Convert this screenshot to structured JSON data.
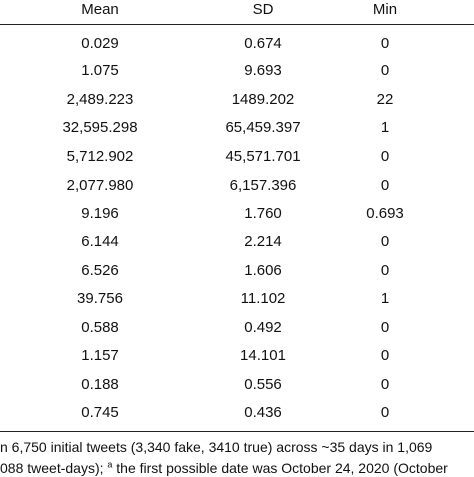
{
  "table": {
    "header": [
      "Mean",
      "SD",
      "Min"
    ],
    "rows": [
      [
        "0.029",
        "0.674",
        "0"
      ],
      [
        "1.075",
        "9.693",
        "0"
      ],
      [
        "2,489.223",
        "1489.202",
        "22"
      ],
      [
        "32,595.298",
        "65,459.397",
        "1"
      ],
      [
        "5,712.902",
        "45,571.701",
        "0"
      ],
      [
        "2,077.980",
        "6,157.396",
        "0"
      ],
      [
        "9.196",
        "1.760",
        "0.693"
      ],
      [
        "6.144",
        "2.214",
        "0"
      ],
      [
        "6.526",
        "1.606",
        "0"
      ],
      [
        "39.756",
        "11.102",
        "1"
      ],
      [
        "0.588",
        "0.492",
        "0"
      ],
      [
        "1.157",
        "14.101",
        "0"
      ],
      [
        "0.188",
        "0.556",
        "0"
      ],
      [
        "0.745",
        "0.436",
        "0"
      ]
    ]
  },
  "footnote": {
    "line1": "n 6,750 initial tweets (3,340 fake, 3410 true) across ~35 days in 1,069",
    "line2": [
      "088 tweet-days); ",
      "a",
      " the first possible date was October 24, 2020 (October"
    ]
  }
}
